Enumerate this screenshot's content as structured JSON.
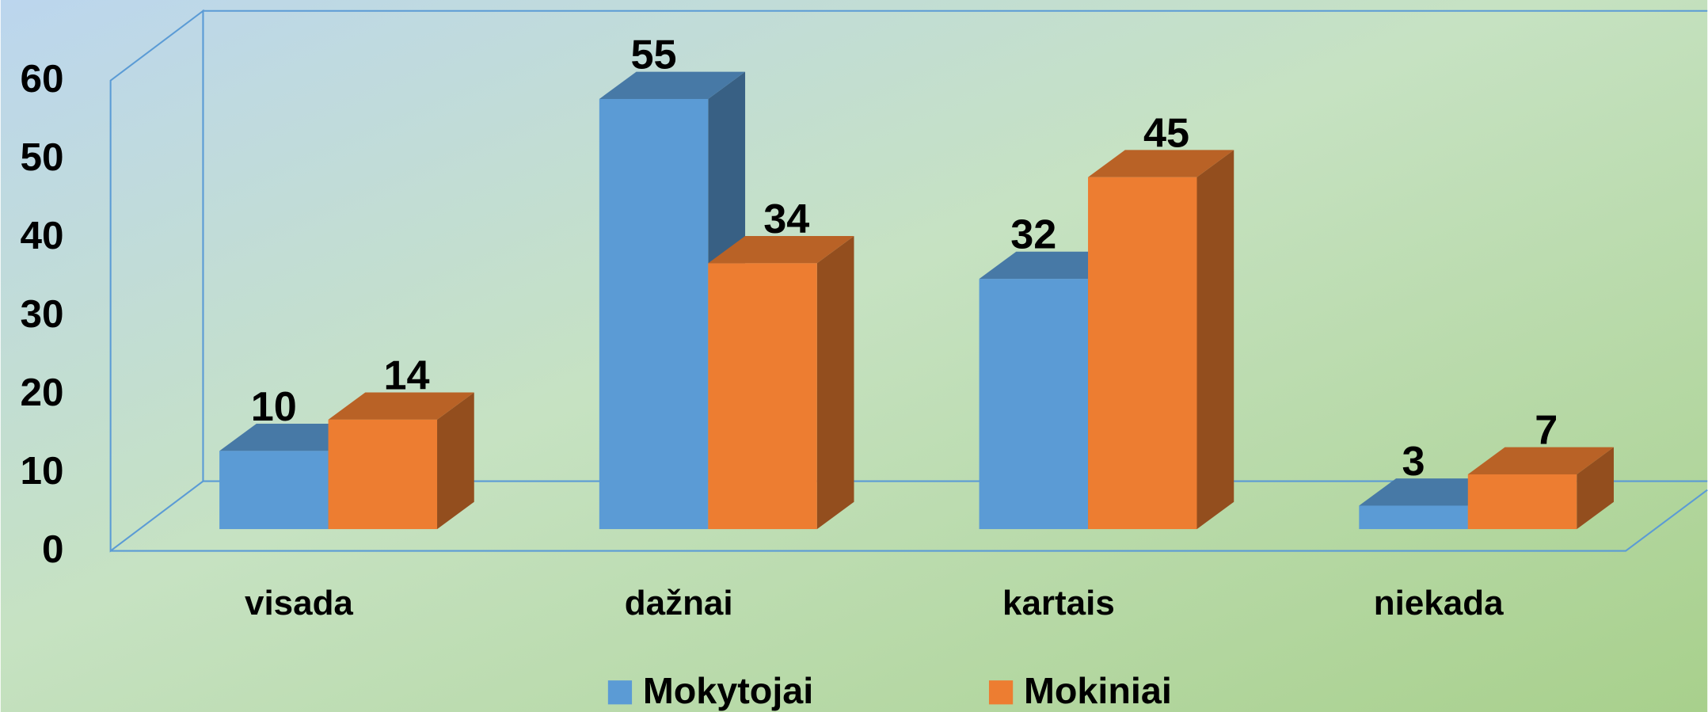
{
  "chart_data": {
    "type": "bar3d",
    "categories": [
      "visada",
      "dažnai",
      "kartais",
      "niekada"
    ],
    "series": [
      {
        "name": "Mokytojai",
        "color": "#5b9bd5",
        "values": [
          10,
          55,
          32,
          3
        ]
      },
      {
        "name": "Mokiniai",
        "color": "#ed7d31",
        "values": [
          14,
          34,
          45,
          7
        ]
      }
    ],
    "ylim": [
      0,
      60
    ],
    "yticks": [
      0,
      10,
      20,
      30,
      40,
      50,
      60
    ],
    "legend": "bottom"
  }
}
